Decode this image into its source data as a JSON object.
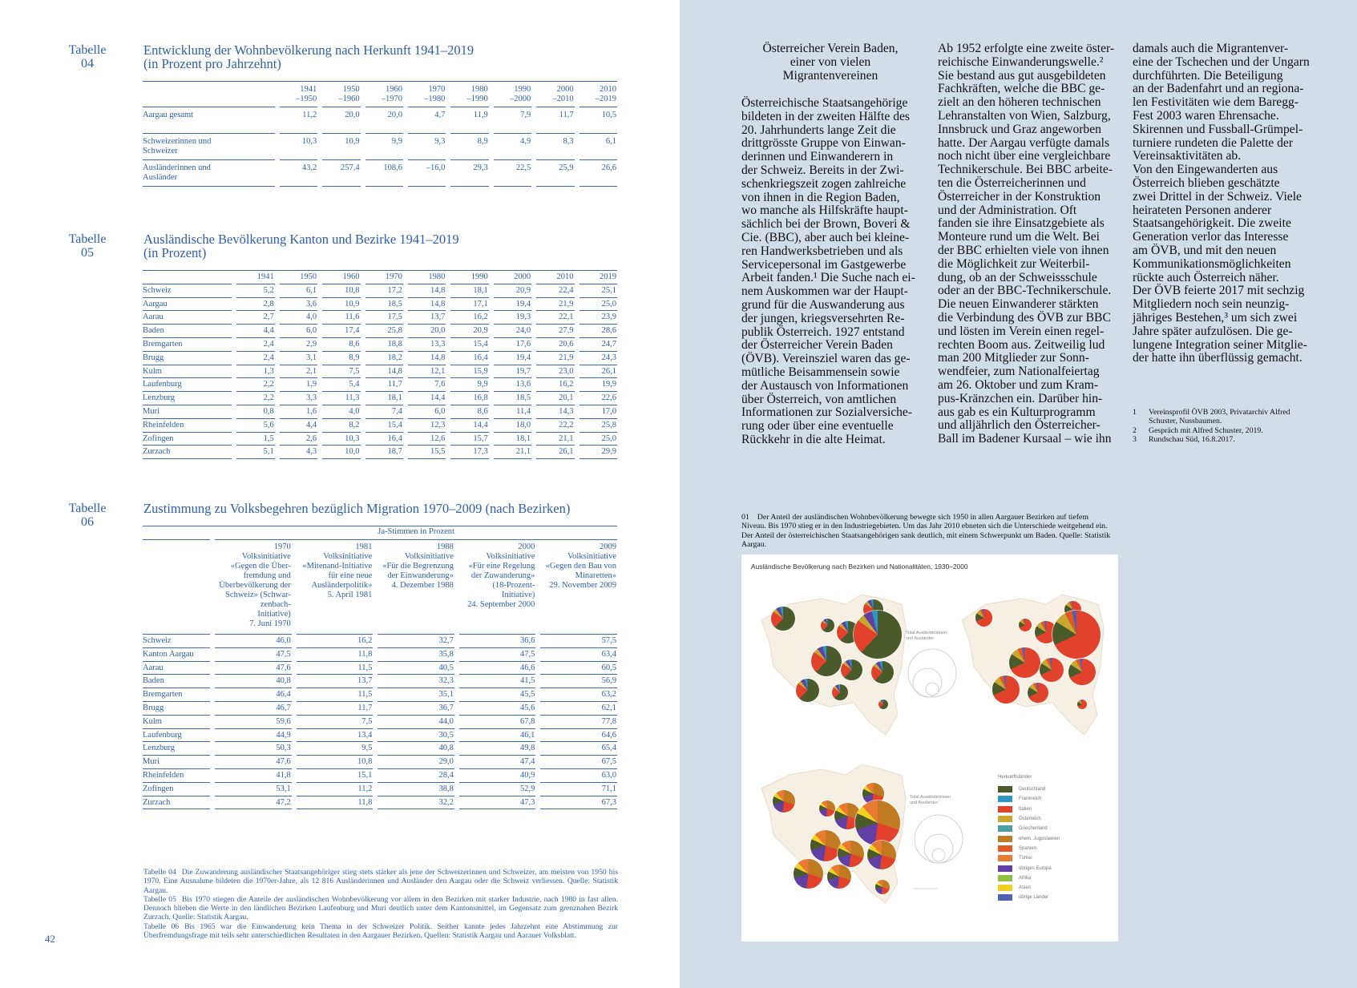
{
  "left_page": {
    "page_number": "42",
    "table04": {
      "label": "Tabelle\n04",
      "title": "Entwicklung der Wohnbevölkerung nach Herkunft 1941–2019\n(in Prozent pro Jahrzehnt)",
      "columns": [
        "1941\n–1950",
        "1950\n–1960",
        "1960\n–1970",
        "1970\n–1980",
        "1980\n–1990",
        "1990\n–2000",
        "2000\n–2010",
        "2010\n–2019"
      ],
      "rows": [
        {
          "label": "Aargau gesamt",
          "values": [
            "11,2",
            "20,0",
            "20,0",
            "4,7",
            "11,9",
            "7,9",
            "11,7",
            "10,5"
          ]
        },
        {
          "label": "Schweizerinnen und Schweizer",
          "values": [
            "10,3",
            "10,9",
            "9,9",
            "9,3",
            "8,9",
            "4,9",
            "8,3",
            "6,1"
          ]
        },
        {
          "label": "Ausländerinnen und Ausländer",
          "values": [
            "43,2",
            "257,4",
            "108,6",
            "–16,0",
            "29,3",
            "22,5",
            "25,9",
            "26,6"
          ]
        }
      ]
    },
    "table05": {
      "label": "Tabelle\n05",
      "title": "Ausländische Bevölkerung Kanton und Bezirke 1941–2019\n(in Prozent)",
      "columns": [
        "1941",
        "1950",
        "1960",
        "1970",
        "1980",
        "1990",
        "2000",
        "2010",
        "2019"
      ],
      "rows": [
        {
          "label": "Schweiz",
          "values": [
            "5,2",
            "6,1",
            "10,8",
            "17,2",
            "14,8",
            "18,1",
            "20,9",
            "22,4",
            "25,1"
          ]
        },
        {
          "label": "Aargau",
          "values": [
            "2,8",
            "3,6",
            "10,9",
            "18,5",
            "14,8",
            "17,1",
            "19,4",
            "21,9",
            "25,0"
          ]
        },
        {
          "label": "Aarau",
          "values": [
            "2,7",
            "4,0",
            "11,6",
            "17,5",
            "13,7",
            "16,2",
            "19,3",
            "22,1",
            "23,9"
          ]
        },
        {
          "label": "Baden",
          "values": [
            "4,4",
            "6,0",
            "17,4",
            "25,8",
            "20,0",
            "20,9",
            "24,0",
            "27,9",
            "28,6"
          ]
        },
        {
          "label": "Bremgarten",
          "values": [
            "2,4",
            "2,9",
            "8,6",
            "18,8",
            "13,3",
            "15,4",
            "17,6",
            "20,6",
            "24,7"
          ]
        },
        {
          "label": "Brugg",
          "values": [
            "2,4",
            "3,1",
            "8,9",
            "18,2",
            "14,8",
            "16,4",
            "19,4",
            "21,9",
            "24,3"
          ]
        },
        {
          "label": "Kulm",
          "values": [
            "1,3",
            "2,1",
            "7,5",
            "14,8",
            "12,1",
            "15,9",
            "19,7",
            "23,0",
            "26,1"
          ]
        },
        {
          "label": "Laufenburg",
          "values": [
            "2,2",
            "1,9",
            "5,4",
            "11,7",
            "7,6",
            "9,9",
            "13,6",
            "16,2",
            "19,9"
          ]
        },
        {
          "label": "Lenzburg",
          "values": [
            "2,2",
            "3,3",
            "11,3",
            "18,1",
            "14,4",
            "16,8",
            "18,5",
            "20,1",
            "22,6"
          ]
        },
        {
          "label": "Muri",
          "values": [
            "0,8",
            "1,6",
            "4,0",
            "7,4",
            "6,0",
            "8,6",
            "11,4",
            "14,3",
            "17,0"
          ]
        },
        {
          "label": "Rheinfelden",
          "values": [
            "5,6",
            "4,4",
            "8,2",
            "15,4",
            "12,3",
            "14,4",
            "18,0",
            "22,2",
            "25,8"
          ]
        },
        {
          "label": "Zofingen",
          "values": [
            "1,5",
            "2,6",
            "10,3",
            "16,4",
            "12,6",
            "15,7",
            "18,1",
            "21,1",
            "25,0"
          ]
        },
        {
          "label": "Zurzach",
          "values": [
            "5,1",
            "4,3",
            "10,0",
            "18,7",
            "15,5",
            "17,3",
            "21,1",
            "26,1",
            "29,9"
          ]
        }
      ]
    },
    "table06": {
      "label": "Tabelle\n06",
      "title": "Zustimmung zu Volksbegehren bezüglich Migration 1970–2009 (nach Bezirken)",
      "group_header": "Ja-Stimmen in Prozent",
      "columns": [
        "1970\nVolksinitiative\n«Gegen die Über-\nfremdung und\nÜberbevölkerung der\nSchweiz» (Schwar-\nzenbach-\nInitiative)\n7. Juni 1970",
        "1981\nVolksinitiative\n«Mitenand-Initiative\nfür eine neue\nAusländerpolitik»\n5. April 1981",
        "1988\nVolksinitiative\n«Für die Begrenzung\nder Einwanderung»\n4. Dezember 1988",
        "2000\nVolksinitiative\n«Für eine Regelung\nder Zuwanderung»\n(18-Prozent-\nInitiative)\n24. September 2000",
        "2009\nVolksinitiative\n«Gegen den Bau von\nMinaretten»\n29. November 2009"
      ],
      "rows": [
        {
          "label": "Schweiz",
          "values": [
            "46,0",
            "16,2",
            "32,7",
            "36,6",
            "57,5"
          ]
        },
        {
          "label": "Kanton Aargau",
          "values": [
            "47,5",
            "11,8",
            "35,8",
            "47,5",
            "63,4"
          ]
        },
        {
          "label": "Aarau",
          "values": [
            "47,6",
            "11,5",
            "40,5",
            "46,6",
            "60,5"
          ]
        },
        {
          "label": "Baden",
          "values": [
            "40,8",
            "13,7",
            "32,3",
            "41,5",
            "56,9"
          ]
        },
        {
          "label": "Bremgarten",
          "values": [
            "46,4",
            "11,5",
            "35,1",
            "45,5",
            "63,2"
          ]
        },
        {
          "label": "Brugg",
          "values": [
            "46,7",
            "11,7",
            "36,7",
            "45,6",
            "62,1"
          ]
        },
        {
          "label": "Kulm",
          "values": [
            "59,6",
            "7,5",
            "44,0",
            "67,8",
            "77,8"
          ]
        },
        {
          "label": "Laufenburg",
          "values": [
            "44,9",
            "13,4",
            "30,5",
            "46,1",
            "64,6"
          ]
        },
        {
          "label": "Lenzburg",
          "values": [
            "50,3",
            "9,5",
            "40,8",
            "49,8",
            "65,4"
          ]
        },
        {
          "label": "Muri",
          "values": [
            "47,6",
            "10,8",
            "29,0",
            "47,4",
            "67,5"
          ]
        },
        {
          "label": "Rheinfelden",
          "values": [
            "41,8",
            "15,1",
            "28,4",
            "40,9",
            "63,0"
          ]
        },
        {
          "label": "Zofingen",
          "values": [
            "53,1",
            "11,2",
            "38,8",
            "52,9",
            "71,1"
          ]
        },
        {
          "label": "Zurzach",
          "values": [
            "47,2",
            "11,8",
            "32,2",
            "47,3",
            "67,3"
          ]
        }
      ]
    },
    "notes": [
      {
        "tag": "Tabelle 04",
        "text": "Die Zuwanderung ausländischer Staatsangehöriger stieg stets stärker als jene der Schweizerinnen und Schweizer, am meisten von 1950 bis 1970. Eine Ausnahme bildeten die 1970er-Jahre, als 12 816 Ausländerinnen und Ausländer den Aargau oder die Schweiz verliessen. Quelle: Statistik Aargau."
      },
      {
        "tag": "Tabelle 05",
        "text": "Bis 1970 stiegen die Anteile der ausländischen Wohnbevölkerung vor allem in den Bezirken mit starker Industrie, nach 1980 in fast allen. Dennoch blieben die Werte in den ländlichen Bezirken Laufenburg und Muri deutlich unter dem Kantonsmittel, im Gegensatz zum grenznahen Bezirk Zurzach. Quelle: Statistik Aargau."
      },
      {
        "tag": "Tabelle 06",
        "text": "Bis 1965 war die Einwanderung kein Thema in der Schweizer Politik. Seither kannte jedes Jahrzehnt eine Abstimmung zur Überfremdungsfrage mit teils sehr unterschiedlichen Resultaten in den Aargauer Bezirken. Quellen: Statistik Aargau und Aarauer Volksblatt."
      }
    ]
  },
  "right_page": {
    "heading": "Österreicher Verein Baden,\neiner von vielen\nMigrantenvereinen",
    "col1": [
      "Österreichische Staatsangehörige\nbildeten in der zweiten Hälfte des\n20. Jahrhunderts lange Zeit die\ndrittgrösste Gruppe von Einwan-\nderinnen und Einwanderern in\nder Schweiz. Bereits in der Zwi-\nschenkriegszeit zogen zahlreiche\nvon ihnen in die Region Baden,\nwo manche als Hilfskräfte haupt-\nsächlich bei der Brown, Boveri &\nCie. (BBC), aber auch bei kleine-\nren Handwerksbetrieben und als\nServicepersonal im Gastgewerbe\nArbeit fanden.¹ Die Suche nach ei-\nnem Auskommen war der Haupt-\ngrund für die Auswanderung aus\nder jungen, kriegsversehrten Re-\npublik Österreich. 1927 entstand\nder Österreicher Verein Baden\n(ÖVB). Vereinsziel waren das ge-\nmütliche Beisammensein sowie\nder Austausch von Informationen\nüber Österreich, von amtlichen\nInformationen zur Sozialversiche-\nrung oder über eine eventuelle\nRückkehr in die alte Heimat."
    ],
    "col2": [
      "Ab 1952 erfolgte eine zweite öster-\nreichische Einwanderungswelle.²\nSie bestand aus gut ausgebildeten\nFachkräften, welche die BBC ge-\nzielt an den höheren technischen\nLehranstalten von Wien, Salzburg,\nInnsbruck und Graz angeworben\nhatte. Der Aargau verfügte damals\nnoch nicht über eine vergleichbare\nTechnikerschule. Bei BBC arbeite-\nten die Österreicherinnen und\nÖsterreicher in der Konstruktion\nund der Administration. Oft\nfanden sie ihre Einsatzgebiete als\nMonteure rund um die Welt. Bei\nder BBC erhielten viele von ihnen\ndie Möglichkeit zur Weiterbil-\ndung, ob an der Schweissschule\noder an der BBC-Technikerschule.",
      "    Die neuen Einwanderer stärkten\ndie Verbindung des ÖVB zur BBC\nund lösten im Verein einen regel-\nrechten Boom aus. Zeitweilig lud\nman 200 Mitglieder zur Sonn-\nwendfeier, zum Nationalfeiertag\nam 26. Oktober und zum Kram-\npus-Kränzchen ein. Darüber hin-\naus gab es ein Kulturprogramm\nund alljährlich den Österreicher-\nBall im Badener Kursaal – wie ihn"
    ],
    "col3": [
      "damals auch die Migrantenver-\neine der Tschechen und der Ungarn\ndurchführten. Die Beteiligung\nan der Badenfahrt und an regiona-\nlen Festivitäten wie dem Baregg-\nFest 2003 waren Ehrensache.\nSkirennen und Fussball-Grümpel-\nturniere rundeten die Palette der\nVereinsaktivitäten ab.",
      "    Von den Eingewanderten aus\nÖsterreich blieben geschätzte\nzwei Drittel in der Schweiz. Viele\nheirateten Personen anderer\nStaatsangehörigkeit. Die zweite\nGeneration verlor das Interesse\nam ÖVB, und mit den neuen\nKommunikationsmöglichkeiten\nrückte auch Österreich näher.\nDer ÖVB feierte 2017 mit sechzig\nMitgliedern noch sein neunzig-\njähriges Bestehen,³ um sich zwei\nJahre später aufzulösen. Die ge-\nlungene Integration seiner Mitglie-\nder hatte ihn überflüssig gemacht."
    ],
    "footnotes": [
      {
        "n": "1",
        "text": "Vereinsprofil ÖVB 2003, Privatarchiv Alfred Schuster, Nussbaumen."
      },
      {
        "n": "2",
        "text": "Gespräch mit Alfred Schuster, 2019."
      },
      {
        "n": "3",
        "text": "Rundschau Süd, 16.8.2017."
      }
    ],
    "caption": {
      "num": "01",
      "text": "Der Anteil der ausländischen Wohnbevölkerung bewegte sich 1950 in allen Aargauer Bezirken auf tiefem Niveau. Bis 1970 stieg er in den Industriegebieten. Um das Jahr 2010 ebneten sich die Unterschiede weitgehend ein. Der Anteil der österreichischen Staatsangehörigen sank deutlich, mit einem Schwerpunkt um Baden. Quelle: Statistik Aargau."
    },
    "figure": {
      "title": "Ausländische Bevölkerung nach Bezirken und Nationalitäten, 1930–2000",
      "scale_label": "Total Ausländerinnen\nund Ausländer",
      "legend_title": "Herkunftsländer",
      "legend": [
        {
          "label": "Deutschland",
          "color": "#4b5a2b"
        },
        {
          "label": "Frankreich",
          "color": "#2a98c2"
        },
        {
          "label": "Italien",
          "color": "#e2412b"
        },
        {
          "label": "Österreich",
          "color": "#c9a832"
        },
        {
          "label": "Griechenland",
          "color": "#4aa0a0"
        },
        {
          "label": "ehem. Jugoslawien",
          "color": "#c07a22"
        },
        {
          "label": "Spanien",
          "color": "#e25a22"
        },
        {
          "label": "Türkei",
          "color": "#e87a32"
        },
        {
          "label": "übriges Europa",
          "color": "#6040a2"
        },
        {
          "label": "Afrika",
          "color": "#92c042"
        },
        {
          "label": "Asien",
          "color": "#f0d022"
        },
        {
          "label": "übrige Länder",
          "color": "#5060b2"
        }
      ]
    }
  },
  "colors": {
    "text_blue": "#2f5fa9",
    "right_page_background": "#d3dde7"
  }
}
